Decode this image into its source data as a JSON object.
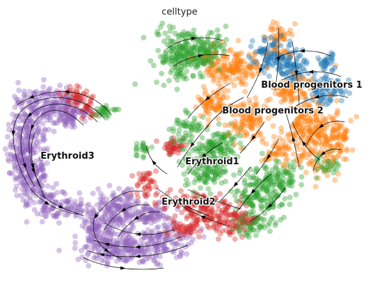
{
  "chart_data": {
    "type": "scatter",
    "title": "celltype",
    "xlabel": "",
    "ylabel": "",
    "grid": false,
    "axes": false,
    "overlay": "velocity streamlines",
    "palette": {
      "Blood progenitors 1": "#1f77b4",
      "Blood progenitors 2": "#ff7f0e",
      "Erythroid1": "#2ca02c",
      "Erythroid2": "#d62728",
      "Erythroid3": "#9467bd"
    },
    "clusters": [
      {
        "name": "Blood progenitors 1",
        "label_x": 448,
        "label_y": 126
      },
      {
        "name": "Blood progenitors 2",
        "label_x": 392,
        "label_y": 163
      },
      {
        "name": "Erythroid1",
        "label_x": 305,
        "label_y": 236
      },
      {
        "name": "Erythroid2",
        "label_x": 271,
        "label_y": 294
      },
      {
        "name": "Erythroid3",
        "label_x": 97,
        "label_y": 228
      }
    ]
  }
}
